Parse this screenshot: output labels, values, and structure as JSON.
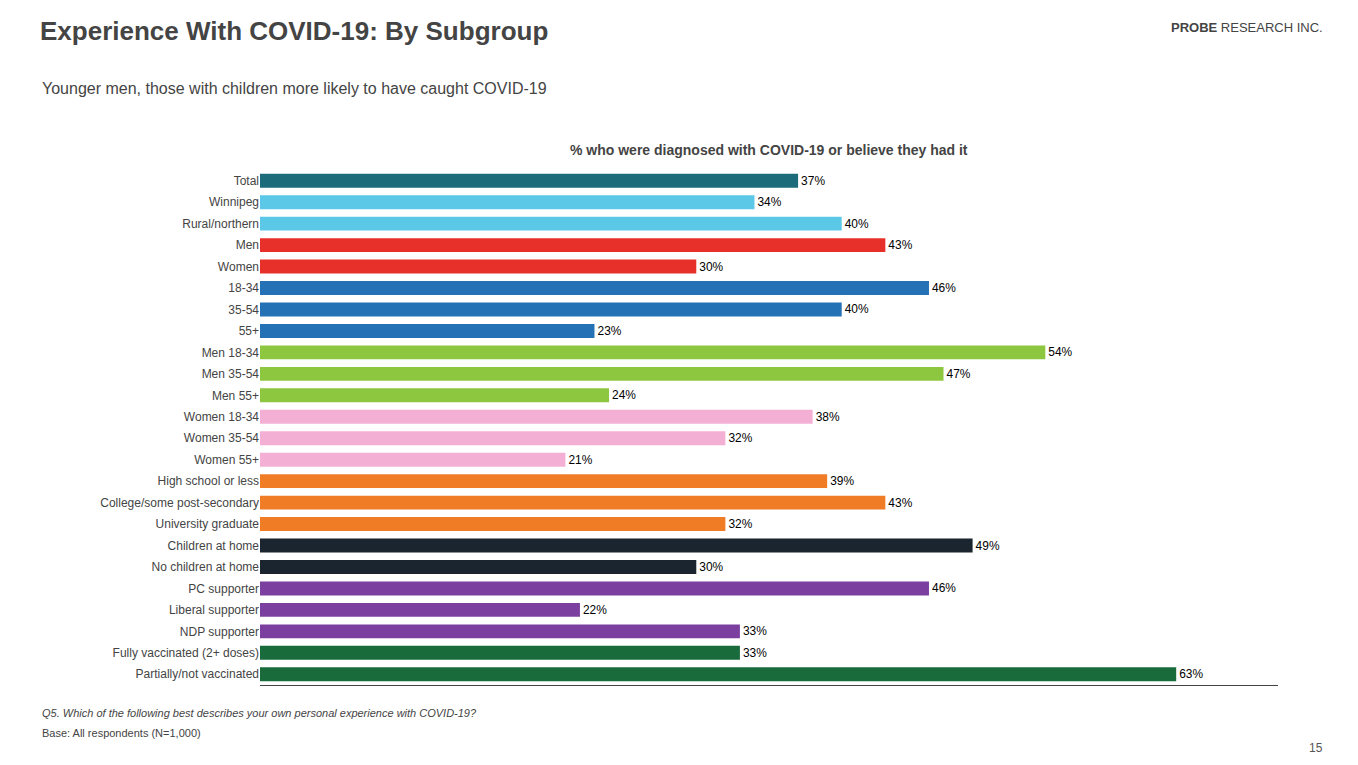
{
  "chart_data": {
    "type": "bar",
    "orientation": "horizontal",
    "title": "Experience With COVID-19: By Subgroup",
    "subtitle": "Younger men, those with children more likely to have caught COVID-19",
    "chart_title": "% who were diagnosed with COVID-19 or believe they had it",
    "footnotes": [
      "Q5. Which of the following best describes your own personal experience with COVID-19?",
      "Base: All respondents (N=1,000)"
    ],
    "page_number": "15",
    "logo": [
      "PROBE",
      " RESEARCH INC."
    ],
    "categories": [
      "Total",
      "Winnipeg",
      "Rural/northern",
      "Men",
      "Women",
      "18-34",
      "35-54",
      "55+",
      "Men 18-34",
      "Men 35-54",
      "Men 55+",
      "Women 18-34",
      "Women 35-54",
      "Women 55+",
      "High school or less",
      "College/some post-secondary",
      "University graduate",
      "Children at home",
      "No children at home",
      "PC supporter",
      "Liberal supporter",
      "NDP supporter",
      "Fully vaccinated (2+ doses)",
      "Partially/not vaccinated"
    ],
    "values": [
      37,
      34,
      40,
      43,
      30,
      46,
      40,
      23,
      54,
      47,
      24,
      38,
      32,
      21,
      39,
      43,
      32,
      49,
      30,
      46,
      22,
      33,
      33,
      63
    ],
    "value_labels": [
      "37%",
      "34%",
      "40%",
      "43%",
      "30%",
      "46%",
      "40%",
      "23%",
      "54%",
      "47%",
      "24%",
      "38%",
      "32%",
      "21%",
      "39%",
      "43%",
      "32%",
      "49%",
      "30%",
      "46%",
      "22%",
      "33%",
      "33%",
      "63%"
    ],
    "colors": [
      "#1b6b7b",
      "#5bc8e8",
      "#5bc8e8",
      "#e8302a",
      "#e8302a",
      "#2471b5",
      "#2471b5",
      "#2471b5",
      "#8dc63f",
      "#8dc63f",
      "#8dc63f",
      "#f4afd4",
      "#f4afd4",
      "#f4afd4",
      "#f07d26",
      "#f07d26",
      "#f07d26",
      "#1a252f",
      "#1a252f",
      "#7b3fa0",
      "#7b3fa0",
      "#7b3fa0",
      "#1a6b3c",
      "#1a6b3c"
    ],
    "xlim": [
      0,
      70
    ],
    "data_labels": true,
    "tick_labels": "y",
    "grid": false
  }
}
